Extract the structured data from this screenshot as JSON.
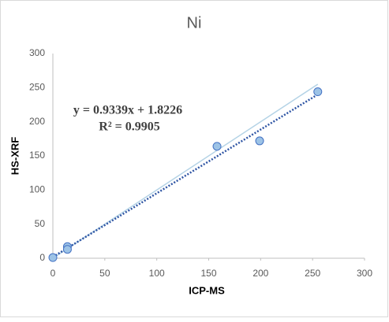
{
  "chart_data": {
    "type": "scatter",
    "title": "Ni",
    "xlabel": "ICP-MS",
    "ylabel": "HS-XRF",
    "annotations": [
      "y = 0.9339x + 1.8226",
      "R² = 0.9905"
    ],
    "series": [
      {
        "type": "line",
        "color": "#b4d3e6",
        "x": [
          0,
          255
        ],
        "values": [
          0,
          255
        ]
      },
      {
        "type": "line",
        "dashed": true,
        "color": "#2f55a4",
        "x": [
          0,
          255
        ],
        "values": [
          1.8,
          240
        ]
      },
      {
        "type": "scatter",
        "color": "#9dc3e6",
        "x": [
          0,
          14,
          14,
          158,
          199,
          255
        ],
        "values": [
          1,
          17,
          13,
          164,
          172,
          244
        ]
      }
    ],
    "xlim": [
      0,
      300
    ],
    "xticks": [
      0,
      50,
      100,
      150,
      200,
      250,
      300
    ],
    "ylim": [
      0,
      300
    ],
    "yticks": [
      0,
      50,
      100,
      150,
      200,
      250,
      300
    ],
    "grid": false
  }
}
